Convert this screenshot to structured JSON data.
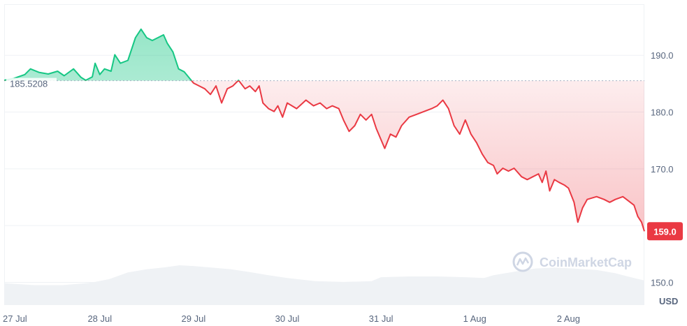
{
  "chart_data": {
    "type": "area",
    "currency": "USD",
    "baseline": 185.5208,
    "baseline_label": "185.5208",
    "last_value": 159.0,
    "last_value_label": "159.0",
    "ylim": [
      146,
      199
    ],
    "y_ticks": [
      150.0,
      160.0,
      170.0,
      180.0,
      190.0
    ],
    "y_tick_labels": [
      "150.0",
      "",
      "170.0",
      "180.0",
      "190.0"
    ],
    "x_ticks": [
      {
        "t": 0,
        "label": "27 Jul"
      },
      {
        "t": 1,
        "label": "28 Jul"
      },
      {
        "t": 2,
        "label": "29 Jul"
      },
      {
        "t": 3,
        "label": "30 Jul"
      },
      {
        "t": 4,
        "label": "31 Jul"
      },
      {
        "t": 5,
        "label": "1 Aug"
      },
      {
        "t": 6,
        "label": "2 Aug"
      }
    ],
    "xlim": [
      -0.02,
      6.81
    ],
    "above_color": "#16c784",
    "below_color": "#ea3943",
    "series": [
      {
        "values": [
          [
            -0.02,
            185.6
          ],
          [
            0.08,
            185.9
          ],
          [
            0.2,
            186.6
          ],
          [
            0.26,
            187.6
          ],
          [
            0.35,
            187.0
          ],
          [
            0.45,
            186.7
          ],
          [
            0.55,
            187.2
          ],
          [
            0.62,
            186.4
          ],
          [
            0.72,
            187.6
          ],
          [
            0.8,
            186.1
          ],
          [
            0.85,
            185.6
          ],
          [
            0.92,
            186.2
          ],
          [
            0.95,
            188.6
          ],
          [
            1.0,
            186.6
          ],
          [
            1.05,
            187.6
          ],
          [
            1.12,
            187.2
          ],
          [
            1.16,
            190.1
          ],
          [
            1.22,
            188.6
          ],
          [
            1.3,
            189.1
          ],
          [
            1.38,
            193.1
          ],
          [
            1.44,
            194.6
          ],
          [
            1.5,
            193.1
          ],
          [
            1.56,
            192.6
          ],
          [
            1.62,
            193.1
          ],
          [
            1.68,
            193.6
          ],
          [
            1.72,
            192.1
          ],
          [
            1.78,
            190.6
          ],
          [
            1.84,
            187.6
          ],
          [
            1.9,
            187.1
          ],
          [
            1.95,
            186.1
          ],
          [
            2.0,
            185.1
          ],
          [
            2.06,
            184.6
          ],
          [
            2.12,
            184.1
          ],
          [
            2.18,
            183.1
          ],
          [
            2.24,
            184.6
          ],
          [
            2.3,
            181.6
          ],
          [
            2.36,
            184.1
          ],
          [
            2.42,
            184.6
          ],
          [
            2.48,
            185.6
          ],
          [
            2.55,
            184.1
          ],
          [
            2.6,
            184.6
          ],
          [
            2.66,
            183.6
          ],
          [
            2.7,
            184.6
          ],
          [
            2.74,
            181.6
          ],
          [
            2.8,
            180.6
          ],
          [
            2.86,
            180.1
          ],
          [
            2.9,
            181.1
          ],
          [
            2.95,
            179.1
          ],
          [
            3.0,
            181.6
          ],
          [
            3.1,
            180.6
          ],
          [
            3.2,
            182.1
          ],
          [
            3.28,
            181.1
          ],
          [
            3.35,
            181.6
          ],
          [
            3.42,
            180.6
          ],
          [
            3.48,
            181.1
          ],
          [
            3.55,
            180.6
          ],
          [
            3.6,
            178.6
          ],
          [
            3.66,
            176.6
          ],
          [
            3.72,
            177.6
          ],
          [
            3.78,
            179.6
          ],
          [
            3.84,
            178.6
          ],
          [
            3.9,
            179.6
          ],
          [
            3.95,
            177.1
          ],
          [
            4.04,
            173.6
          ],
          [
            4.1,
            176.1
          ],
          [
            4.16,
            175.6
          ],
          [
            4.22,
            177.6
          ],
          [
            4.3,
            179.1
          ],
          [
            4.38,
            179.6
          ],
          [
            4.46,
            180.1
          ],
          [
            4.54,
            180.6
          ],
          [
            4.6,
            181.1
          ],
          [
            4.66,
            182.1
          ],
          [
            4.72,
            180.6
          ],
          [
            4.78,
            177.6
          ],
          [
            4.84,
            176.1
          ],
          [
            4.9,
            178.6
          ],
          [
            4.96,
            176.1
          ],
          [
            5.02,
            174.6
          ],
          [
            5.08,
            172.6
          ],
          [
            5.14,
            171.1
          ],
          [
            5.2,
            170.6
          ],
          [
            5.24,
            169.1
          ],
          [
            5.3,
            170.1
          ],
          [
            5.36,
            169.6
          ],
          [
            5.42,
            170.1
          ],
          [
            5.5,
            168.6
          ],
          [
            5.56,
            168.1
          ],
          [
            5.62,
            168.6
          ],
          [
            5.68,
            169.1
          ],
          [
            5.72,
            167.6
          ],
          [
            5.76,
            169.6
          ],
          [
            5.8,
            166.1
          ],
          [
            5.85,
            168.1
          ],
          [
            5.9,
            167.6
          ],
          [
            5.96,
            167.1
          ],
          [
            6.0,
            166.6
          ],
          [
            6.06,
            164.1
          ],
          [
            6.1,
            160.6
          ],
          [
            6.15,
            163.1
          ],
          [
            6.2,
            164.6
          ],
          [
            6.3,
            165.1
          ],
          [
            6.38,
            164.6
          ],
          [
            6.44,
            164.1
          ],
          [
            6.5,
            164.6
          ],
          [
            6.58,
            165.1
          ],
          [
            6.62,
            164.6
          ],
          [
            6.7,
            163.6
          ],
          [
            6.74,
            161.6
          ],
          [
            6.78,
            160.6
          ],
          [
            6.81,
            159.0
          ]
        ]
      }
    ],
    "volume": [
      [
        -0.02,
        0.55
      ],
      [
        0.3,
        0.5
      ],
      [
        0.6,
        0.5
      ],
      [
        0.9,
        0.56
      ],
      [
        1.1,
        0.65
      ],
      [
        1.3,
        0.82
      ],
      [
        1.5,
        0.9
      ],
      [
        1.7,
        0.95
      ],
      [
        1.85,
        1.0
      ],
      [
        2.0,
        0.98
      ],
      [
        2.2,
        0.94
      ],
      [
        2.4,
        0.9
      ],
      [
        2.6,
        0.83
      ],
      [
        2.8,
        0.75
      ],
      [
        3.0,
        0.68
      ],
      [
        3.3,
        0.6
      ],
      [
        3.6,
        0.58
      ],
      [
        3.9,
        0.6
      ],
      [
        4.0,
        0.7
      ],
      [
        4.3,
        0.72
      ],
      [
        4.6,
        0.72
      ],
      [
        4.9,
        0.7
      ],
      [
        5.1,
        0.68
      ],
      [
        5.2,
        0.75
      ],
      [
        5.45,
        0.85
      ],
      [
        5.65,
        0.92
      ],
      [
        5.85,
        0.94
      ],
      [
        6.05,
        0.92
      ],
      [
        6.3,
        0.88
      ],
      [
        6.5,
        0.8
      ],
      [
        6.7,
        0.68
      ],
      [
        6.81,
        0.62
      ]
    ]
  },
  "watermark": {
    "text": "CoinMarketCap",
    "icon": "coinmarketcap-logo-icon"
  }
}
